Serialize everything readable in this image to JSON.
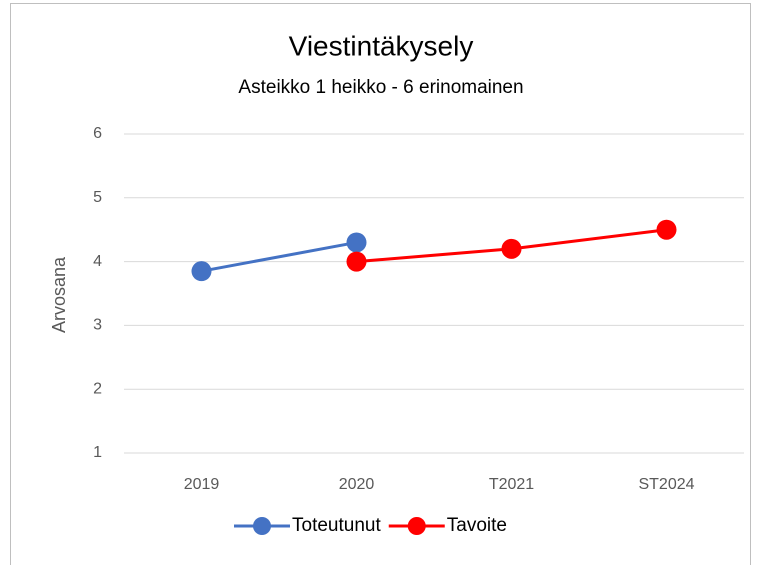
{
  "chart_data": {
    "type": "line",
    "title": "Viestintäkysely",
    "subtitle": "Asteikko 1 heikko - 6 erinomainen",
    "y_label": "Arvosana",
    "categories": [
      "2019",
      "2020",
      "T2021",
      "ST2024"
    ],
    "series": [
      {
        "name": "Toteutunut",
        "color": "#4472c4",
        "values": [
          3.85,
          4.3,
          null,
          null
        ]
      },
      {
        "name": "Tavoite",
        "color": "#ff0000",
        "values": [
          null,
          4.0,
          4.2,
          4.5
        ]
      }
    ],
    "ylim": [
      1,
      6
    ],
    "yticks": [
      1,
      2,
      3,
      4,
      5,
      6
    ],
    "grid": true,
    "legend": "bottom"
  }
}
